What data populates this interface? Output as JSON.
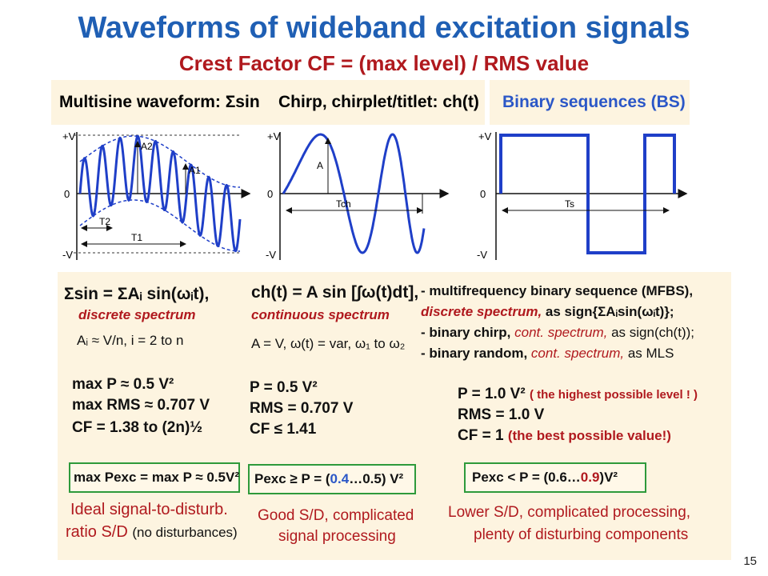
{
  "title": "Waveforms of wideband excitation signals",
  "subtitle": "Crest Factor CF = (max level) / RMS value",
  "headers": {
    "multisine": "Multisine waveform: Σsin",
    "chirp": "Chirp, chirplet/titlet: ch(t)",
    "binary": "Binary sequences (BS)"
  },
  "plots": {
    "multisine": {
      "plus_v": "+V",
      "zero": "0",
      "minus_v": "-V",
      "a2": "A2",
      "a1": "A1",
      "t2": "T2",
      "t1": "T1"
    },
    "chirp": {
      "plus_v": "+V",
      "zero": "0",
      "minus_v": "-V",
      "a": "A",
      "tch": "Tch"
    },
    "binary": {
      "plus_v": "+V",
      "zero": "0",
      "minus_v": "-V",
      "ts": "Ts"
    }
  },
  "col1": {
    "formula": "Σsin = ΣAᵢ sin(ωᵢt),",
    "spectrum": "discrete spectrum",
    "amplitude": "Aᵢ ≈ V/n,  i = 2 to n",
    "max_p": "max P ≈ 0.5 V²",
    "max_rms": "max RMS  ≈  0.707 V",
    "cf": "CF = 1.38 to (2n)½",
    "pexc": "max Pexc = max P ≈ 0.5V²",
    "note_line1": "Ideal signal-to-disturb.",
    "note_line2a": "ratio S/D",
    "note_line2b": "(no disturbances)"
  },
  "col2": {
    "formula": "ch(t) = A sin [∫ω(t)dt],",
    "spectrum": "continuous spectrum",
    "params": "A = V, ω(t) = var, ω₁ to ω₂",
    "p": "P = 0.5 V²",
    "rms": "RMS = 0.707 V",
    "cf": "CF  ≤ 1.41",
    "pexc_a": "Pexc ≥ P = (",
    "pexc_b": "0.4",
    "pexc_c": "…0.5) V²",
    "note_line1": "Good S/D, complicated",
    "note_line2": "signal processing"
  },
  "col3": {
    "line1": "- multifrequency binary sequence (MFBS),",
    "line2a": "discrete spectrum,",
    "line2b": " as sign{ΣAᵢsin(ωᵢt)};",
    "line3a": "- binary chirp,",
    "line3b": " cont. spectrum,",
    "line3c": " as sign(ch(t));",
    "line4a": "- binary random,",
    "line4b": " cont. spectrum,",
    "line4c": " as MLS",
    "p": "P = 1.0 V²",
    "p_note": "( the highest possible level ! )",
    "rms": "RMS = 1.0 V",
    "cf": "CF = 1",
    "cf_note": "(the best possible value!)",
    "pexc_a": "Pexc < P = (0.6…",
    "pexc_b": "0.9",
    "pexc_c": ")V²",
    "note_line1": "Lower S/D, complicated processing,",
    "note_line2": "plenty of disturbing components"
  },
  "colors": {
    "title": "#1f5fb4",
    "subtitle": "#b0191e",
    "wave": "#1f3fc8",
    "panel": "#fdf4e0",
    "box": "#2e9a3b"
  },
  "page_number": "15"
}
